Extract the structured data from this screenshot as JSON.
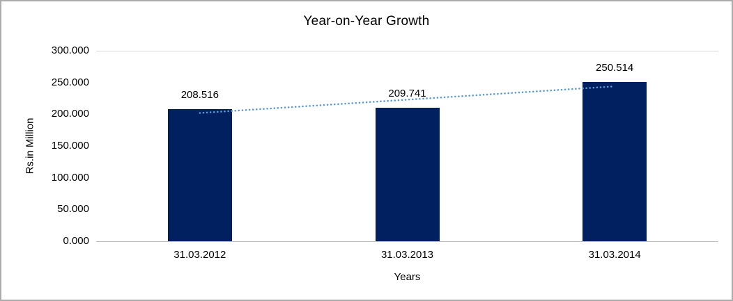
{
  "chart_data": {
    "type": "bar",
    "title": "Year-on-Year Growth",
    "xlabel": "Years",
    "ylabel": "Rs.in Million",
    "categories": [
      "31.03.2012",
      "31.03.2013",
      "31.03.2014"
    ],
    "values": [
      208.516,
      209.741,
      250.514
    ],
    "value_labels": [
      "208.516",
      "209.741",
      "250.514"
    ],
    "ylim": [
      0,
      300
    ],
    "y_ticks": [
      {
        "value": 0,
        "label": "0.000"
      },
      {
        "value": 50,
        "label": "50.000"
      },
      {
        "value": 100,
        "label": "100.000"
      },
      {
        "value": 150,
        "label": "150.000"
      },
      {
        "value": 200,
        "label": "200.000"
      },
      {
        "value": 250,
        "label": "250.000"
      },
      {
        "value": 300,
        "label": "300.000"
      }
    ],
    "bar_color": "#002060",
    "trendline": {
      "style": "dotted",
      "color": "#5B9BD5",
      "start_value": 201.93,
      "end_value": 243.92
    },
    "grid": "off",
    "legend": "none"
  }
}
